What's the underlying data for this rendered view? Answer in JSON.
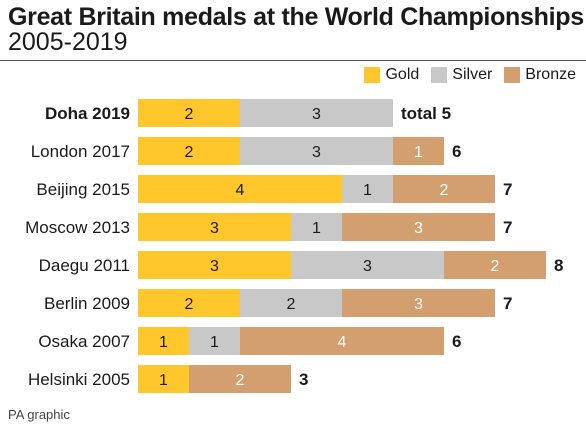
{
  "title": "Great Britain medals at the World Championships",
  "subtitle": "2005-2019",
  "footer": "PA graphic",
  "chart_data": {
    "type": "bar",
    "stacked": true,
    "orientation": "horizontal",
    "title": "Great Britain medals at the World Championships",
    "subtitle": "2005-2019",
    "legend": [
      "Gold",
      "Silver",
      "Bronze"
    ],
    "legend_position": "top-right",
    "grid": false,
    "categories": [
      "Doha 2019",
      "London 2017",
      "Beijing 2015",
      "Moscow 2013",
      "Daegu 2011",
      "Berlin 2009",
      "Osaka 2007",
      "Helsinki 2005"
    ],
    "highlight_category": "Doha 2019",
    "series": [
      {
        "name": "Gold",
        "color": "#FFC72C",
        "values": [
          2,
          2,
          4,
          3,
          3,
          2,
          1,
          1
        ]
      },
      {
        "name": "Silver",
        "color": "#C8C8C8",
        "values": [
          3,
          3,
          1,
          1,
          3,
          2,
          1,
          0
        ]
      },
      {
        "name": "Bronze",
        "color": "#D39F6E",
        "values": [
          0,
          1,
          2,
          3,
          2,
          3,
          4,
          2
        ]
      }
    ],
    "totals": [
      5,
      6,
      7,
      7,
      8,
      7,
      6,
      3
    ],
    "total_labels": [
      "total 5",
      "6",
      "7",
      "7",
      "8",
      "7",
      "6",
      "3"
    ]
  }
}
